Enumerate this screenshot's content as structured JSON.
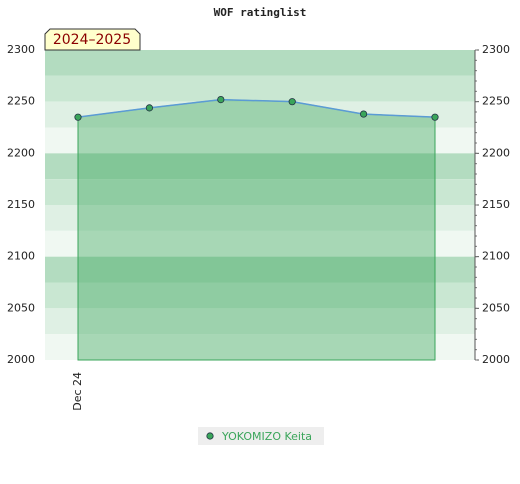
{
  "chart_data": {
    "type": "area",
    "title": "WOF ratinglist",
    "badge": "2024–2025",
    "categories": [
      "Dec 24",
      null,
      null,
      null,
      null,
      null
    ],
    "series": [
      {
        "name": "YOKOMIZO Keita",
        "color": "#3aa55a",
        "values": [
          2235,
          2244,
          2252,
          2250,
          2238,
          2235
        ]
      }
    ],
    "ylim": [
      2000,
      2300
    ],
    "yticks": [
      2000,
      2050,
      2100,
      2150,
      2200,
      2250,
      2300
    ]
  }
}
